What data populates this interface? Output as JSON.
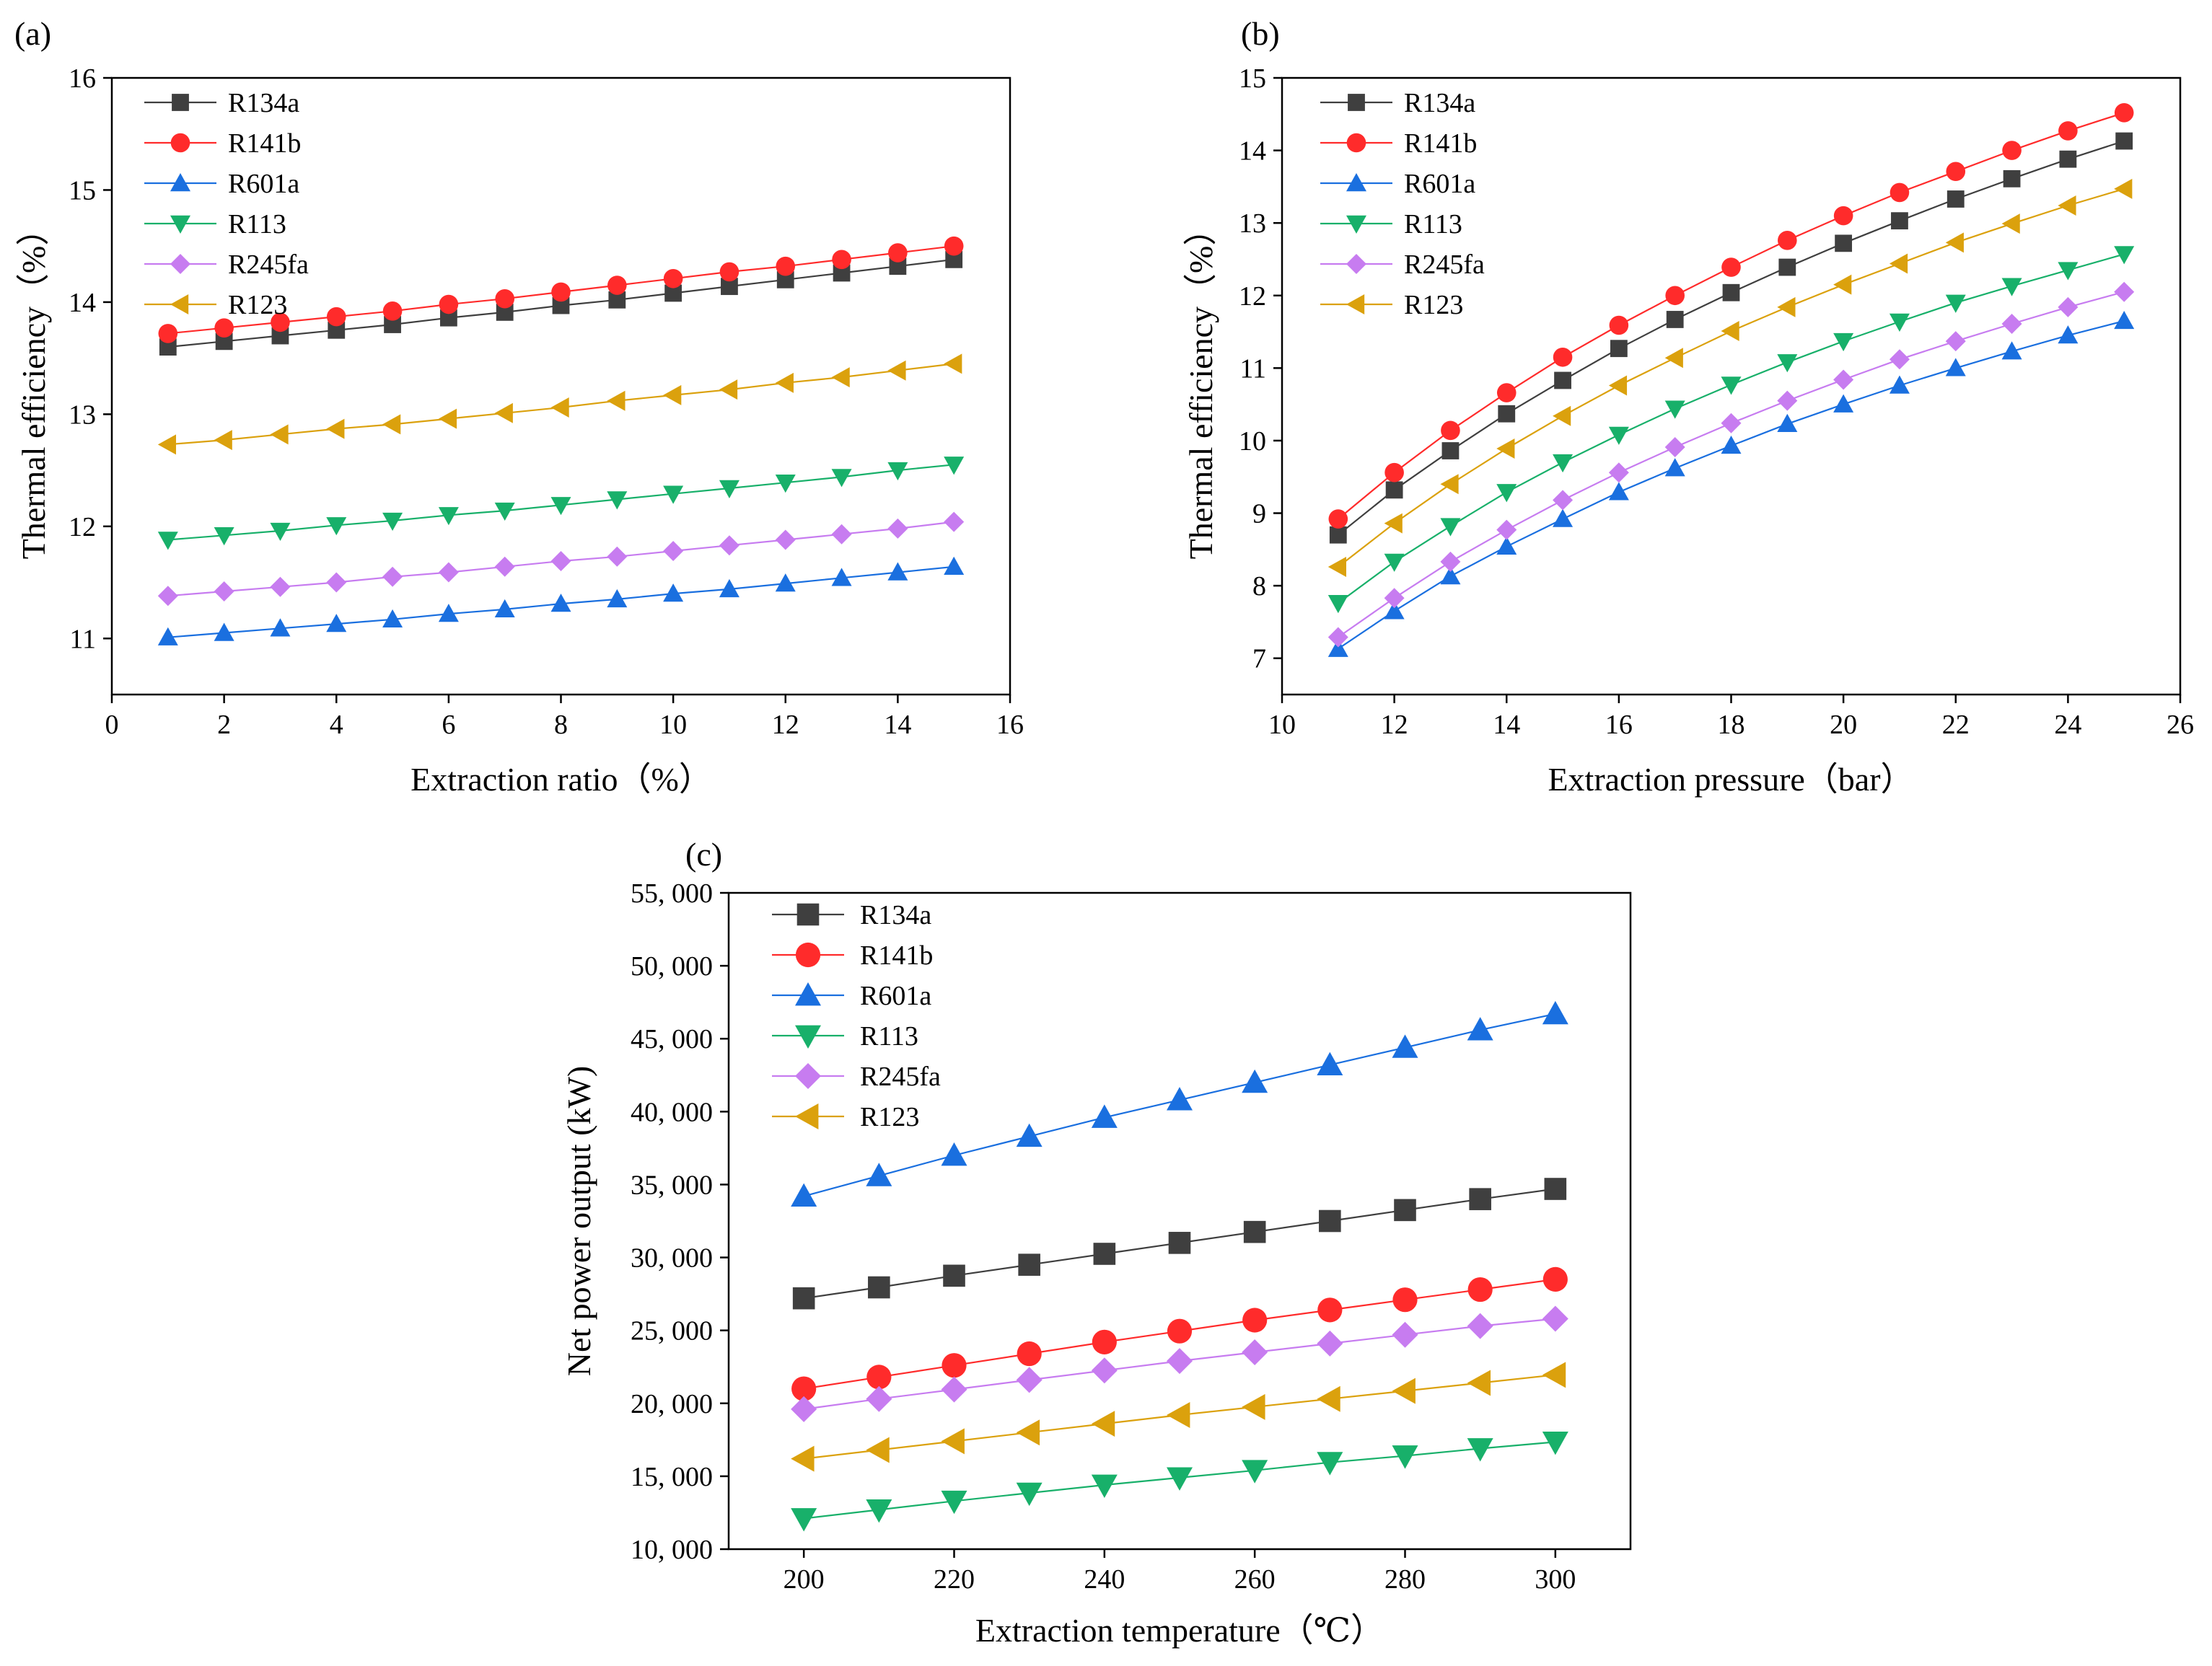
{
  "figure": {
    "colors": {
      "R134a": "#3f3f3f",
      "R141b": "#ff2b2b",
      "R601a": "#1a6fdf",
      "R113": "#18b06a",
      "R245fa": "#c77cf0",
      "R123": "#dba10d"
    },
    "markers": {
      "R134a": "square",
      "R141b": "circle",
      "R601a": "triangle-up",
      "R113": "triangle-down",
      "R245fa": "diamond",
      "R123": "triangle-left"
    }
  },
  "chart_data": [
    {
      "id": "a",
      "label": "(a)",
      "type": "line",
      "xlabel": "Extraction ratio（%）",
      "ylabel": "Thermal efficiency（%）",
      "xlim": [
        0,
        16
      ],
      "ylim": [
        10.5,
        16
      ],
      "xticks": [
        0,
        2,
        4,
        6,
        8,
        10,
        12,
        14,
        16
      ],
      "yticks": [
        11,
        12,
        13,
        14,
        15,
        16
      ],
      "xtick_labels": [
        "0",
        "2",
        "4",
        "6",
        "8",
        "10",
        "12",
        "14",
        "16"
      ],
      "ytick_labels": [
        "11",
        "12",
        "13",
        "14",
        "15",
        "16"
      ],
      "legend_position": "top-left",
      "x": [
        1,
        2,
        3,
        4,
        5,
        6,
        7,
        8,
        9,
        10,
        11,
        12,
        13,
        14,
        15
      ],
      "series": [
        {
          "name": "R134a",
          "values": [
            13.6,
            13.65,
            13.7,
            13.75,
            13.8,
            13.86,
            13.91,
            13.97,
            14.02,
            14.08,
            14.14,
            14.2,
            14.26,
            14.32,
            14.38
          ]
        },
        {
          "name": "R141b",
          "values": [
            13.72,
            13.77,
            13.82,
            13.87,
            13.92,
            13.98,
            14.03,
            14.09,
            14.15,
            14.21,
            14.27,
            14.32,
            14.38,
            14.44,
            14.5
          ]
        },
        {
          "name": "R601a",
          "values": [
            11.01,
            11.05,
            11.09,
            11.13,
            11.17,
            11.22,
            11.26,
            11.31,
            11.35,
            11.4,
            11.44,
            11.49,
            11.54,
            11.59,
            11.64
          ]
        },
        {
          "name": "R113",
          "values": [
            11.88,
            11.92,
            11.96,
            12.01,
            12.05,
            12.1,
            12.14,
            12.19,
            12.24,
            12.29,
            12.34,
            12.39,
            12.44,
            12.5,
            12.55
          ]
        },
        {
          "name": "R245fa",
          "values": [
            11.38,
            11.42,
            11.46,
            11.5,
            11.55,
            11.59,
            11.64,
            11.69,
            11.73,
            11.78,
            11.83,
            11.88,
            11.93,
            11.98,
            12.04
          ]
        },
        {
          "name": "R123",
          "values": [
            12.73,
            12.77,
            12.82,
            12.87,
            12.91,
            12.96,
            13.01,
            13.06,
            13.12,
            13.17,
            13.22,
            13.28,
            13.33,
            13.39,
            13.45
          ]
        }
      ]
    },
    {
      "id": "b",
      "label": "(b)",
      "type": "line",
      "xlabel": "Extraction pressure（bar）",
      "ylabel": "Thermal efficiency（%）",
      "xlim": [
        10,
        26
      ],
      "ylim": [
        6.5,
        15
      ],
      "xticks": [
        10,
        12,
        14,
        16,
        18,
        20,
        22,
        24,
        26
      ],
      "yticks": [
        7,
        8,
        9,
        10,
        11,
        12,
        13,
        14,
        15
      ],
      "xtick_labels": [
        "10",
        "12",
        "14",
        "16",
        "18",
        "20",
        "22",
        "24",
        "26"
      ],
      "ytick_labels": [
        "7",
        "8",
        "9",
        "10",
        "11",
        "12",
        "13",
        "14",
        "15"
      ],
      "legend_position": "top-left",
      "x": [
        11,
        12,
        13,
        14,
        15,
        16,
        17,
        18,
        19,
        20,
        21,
        22,
        23,
        24,
        25
      ],
      "series": [
        {
          "name": "R134a",
          "values": [
            8.7,
            9.32,
            9.86,
            10.37,
            10.83,
            11.27,
            11.67,
            12.04,
            12.39,
            12.72,
            13.03,
            13.33,
            13.61,
            13.88,
            14.13
          ]
        },
        {
          "name": "R141b",
          "values": [
            8.92,
            9.56,
            10.14,
            10.66,
            11.15,
            11.59,
            12.0,
            12.39,
            12.76,
            13.1,
            13.42,
            13.71,
            14.0,
            14.27,
            14.52
          ]
        },
        {
          "name": "R601a",
          "values": [
            7.13,
            7.65,
            8.13,
            8.54,
            8.92,
            9.29,
            9.62,
            9.93,
            10.23,
            10.5,
            10.76,
            11.0,
            11.23,
            11.45,
            11.65
          ]
        },
        {
          "name": "R113",
          "values": [
            7.76,
            8.33,
            8.82,
            9.29,
            9.7,
            10.08,
            10.44,
            10.77,
            11.08,
            11.37,
            11.64,
            11.9,
            12.13,
            12.35,
            12.57
          ]
        },
        {
          "name": "R245fa",
          "values": [
            7.29,
            7.83,
            8.33,
            8.77,
            9.18,
            9.56,
            9.91,
            10.24,
            10.55,
            10.84,
            11.12,
            11.37,
            11.61,
            11.84,
            12.05
          ]
        },
        {
          "name": "R123",
          "values": [
            8.26,
            8.86,
            9.4,
            9.89,
            10.34,
            10.76,
            11.14,
            11.51,
            11.84,
            12.15,
            12.44,
            12.73,
            12.99,
            13.24,
            13.47
          ]
        }
      ]
    },
    {
      "id": "c",
      "label": "(c)",
      "type": "line",
      "xlabel": "Extraction temperature（℃）",
      "ylabel": "Net power output (kW)",
      "xlim": [
        190,
        310
      ],
      "ylim": [
        10000,
        55000
      ],
      "xticks": [
        200,
        220,
        240,
        260,
        280,
        300
      ],
      "yticks": [
        10000,
        15000,
        20000,
        25000,
        30000,
        35000,
        40000,
        45000,
        50000,
        55000
      ],
      "xtick_labels": [
        "200",
        "220",
        "240",
        "260",
        "280",
        "300"
      ],
      "ytick_labels": [
        "10, 000",
        "15, 000",
        "20, 000",
        "25, 000",
        "30, 000",
        "35, 000",
        "40, 000",
        "45, 000",
        "50, 000",
        "55, 000"
      ],
      "legend_position": "top-left",
      "x": [
        200,
        210,
        220,
        230,
        240,
        250,
        260,
        270,
        280,
        290,
        300
      ],
      "series": [
        {
          "name": "R134a",
          "values": [
            27200,
            27950,
            28750,
            29500,
            30250,
            31000,
            31750,
            32500,
            33250,
            34000,
            34700
          ]
        },
        {
          "name": "R141b",
          "values": [
            21000,
            21800,
            22600,
            23400,
            24200,
            24950,
            25700,
            26400,
            27100,
            27800,
            28500
          ]
        },
        {
          "name": "R601a",
          "values": [
            34200,
            35600,
            37000,
            38300,
            39600,
            40800,
            42000,
            43200,
            44400,
            45600,
            46700
          ]
        },
        {
          "name": "R113",
          "values": [
            12100,
            12700,
            13300,
            13850,
            14400,
            14900,
            15400,
            15950,
            16400,
            16900,
            17350
          ]
        },
        {
          "name": "R245fa",
          "values": [
            19600,
            20300,
            20950,
            21600,
            22250,
            22900,
            23500,
            24100,
            24700,
            25300,
            25800
          ]
        },
        {
          "name": "R123",
          "values": [
            16200,
            16800,
            17400,
            18000,
            18600,
            19200,
            19750,
            20300,
            20850,
            21400,
            21950
          ]
        }
      ]
    }
  ]
}
